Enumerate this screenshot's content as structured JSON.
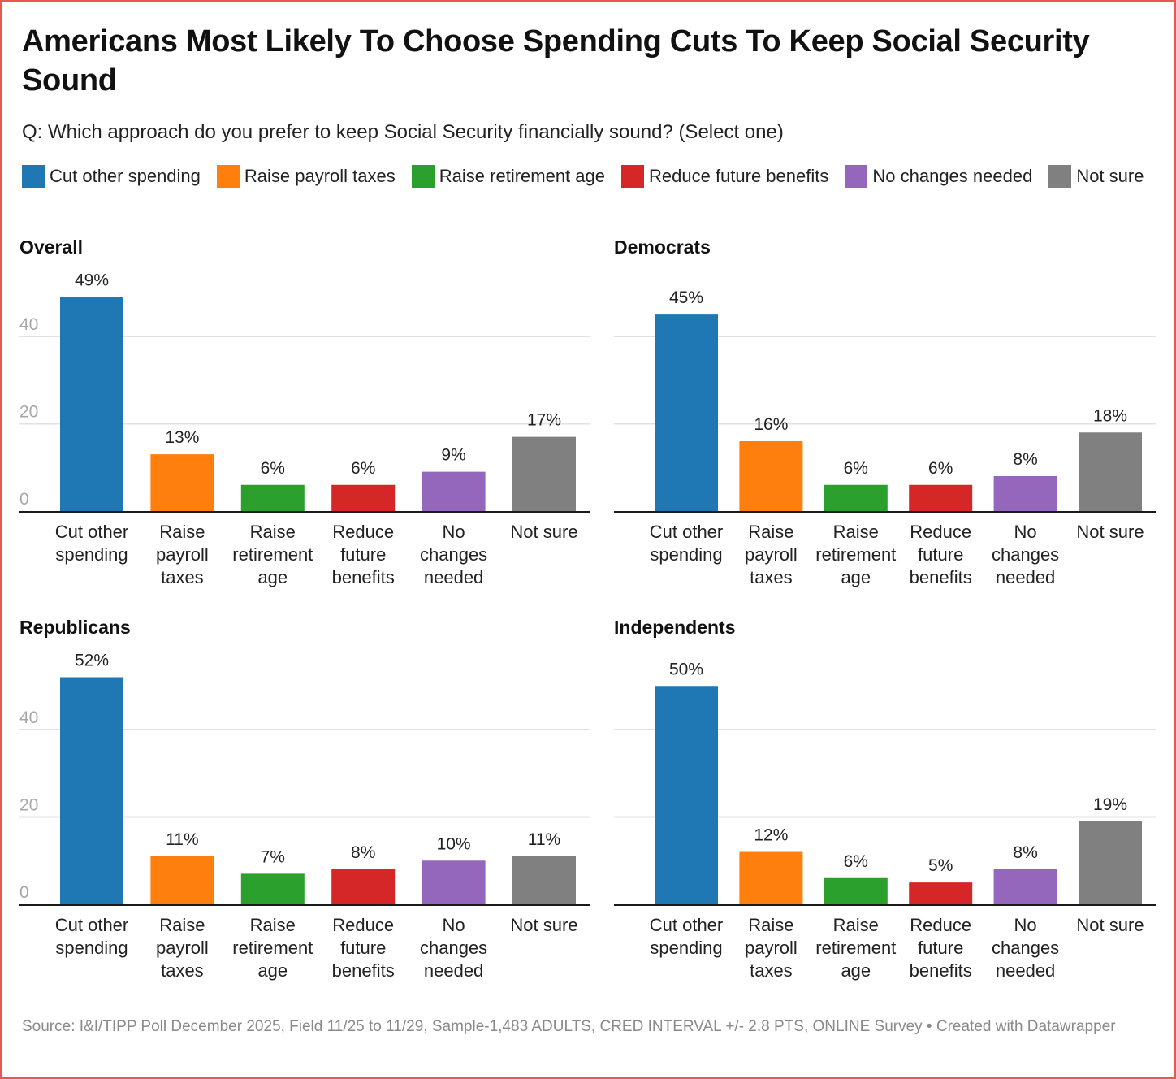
{
  "header": {
    "title": "Americans Most Likely To Choose Spending Cuts To Keep Social Security Sound",
    "subtitle": "Q: Which approach do you prefer to keep Social Security financially sound? (Select one)"
  },
  "legend": [
    {
      "label": "Cut other spending",
      "color": "#1f77b4"
    },
    {
      "label": "Raise payroll taxes",
      "color": "#ff7f0e"
    },
    {
      "label": "Raise retirement age",
      "color": "#2ca02c"
    },
    {
      "label": "Reduce future benefits",
      "color": "#d62728"
    },
    {
      "label": "No changes needed",
      "color": "#9467bd"
    },
    {
      "label": "Not sure",
      "color": "#808080"
    }
  ],
  "footer": {
    "source": "Source: I&I/TIPP Poll December 2025, Field 11/25 to 11/29, Sample-1,483 ADULTS, CRED INTERVAL +/- 2.8 PTS, ONLINE Survey • Created with Datawrapper"
  },
  "chart_data": [
    {
      "type": "bar",
      "title": "Overall",
      "categories": [
        [
          "Cut other",
          "spending"
        ],
        [
          "Raise",
          "payroll",
          "taxes"
        ],
        [
          "Raise",
          "retirement",
          "age"
        ],
        [
          "Reduce",
          "future",
          "benefits"
        ],
        [
          "No",
          "changes",
          "needed"
        ],
        [
          "Not sure"
        ]
      ],
      "values": [
        49,
        13,
        6,
        6,
        9,
        17
      ],
      "labels": [
        "49%",
        "13%",
        "6%",
        "6%",
        "9%",
        "17%"
      ],
      "yticks": [
        "0",
        "20",
        "40"
      ],
      "ytick_values": [
        0,
        20,
        40
      ],
      "show_ytick_labels": true,
      "ylim": [
        0,
        52
      ],
      "grid": true
    },
    {
      "type": "bar",
      "title": "Democrats",
      "categories": [
        [
          "Cut other",
          "spending"
        ],
        [
          "Raise",
          "payroll",
          "taxes"
        ],
        [
          "Raise",
          "retirement",
          "age"
        ],
        [
          "Reduce",
          "future",
          "benefits"
        ],
        [
          "No",
          "changes",
          "needed"
        ],
        [
          "Not sure"
        ]
      ],
      "values": [
        45,
        16,
        6,
        6,
        8,
        18
      ],
      "labels": [
        "45%",
        "16%",
        "6%",
        "6%",
        "8%",
        "18%"
      ],
      "yticks": [
        "0",
        "20",
        "40"
      ],
      "ytick_values": [
        0,
        20,
        40
      ],
      "show_ytick_labels": false,
      "ylim": [
        0,
        52
      ],
      "grid": true
    },
    {
      "type": "bar",
      "title": "Republicans",
      "categories": [
        [
          "Cut other",
          "spending"
        ],
        [
          "Raise",
          "payroll",
          "taxes"
        ],
        [
          "Raise",
          "retirement",
          "age"
        ],
        [
          "Reduce",
          "future",
          "benefits"
        ],
        [
          "No",
          "changes",
          "needed"
        ],
        [
          "Not sure"
        ]
      ],
      "values": [
        52,
        11,
        7,
        8,
        10,
        11
      ],
      "labels": [
        "52%",
        "11%",
        "7%",
        "8%",
        "10%",
        "11%"
      ],
      "yticks": [
        "0",
        "20",
        "40"
      ],
      "ytick_values": [
        0,
        20,
        40
      ],
      "show_ytick_labels": true,
      "ylim": [
        0,
        52
      ],
      "grid": true
    },
    {
      "type": "bar",
      "title": "Independents",
      "categories": [
        [
          "Cut other",
          "spending"
        ],
        [
          "Raise",
          "payroll",
          "taxes"
        ],
        [
          "Raise",
          "retirement",
          "age"
        ],
        [
          "Reduce",
          "future",
          "benefits"
        ],
        [
          "No",
          "changes",
          "needed"
        ],
        [
          "Not sure"
        ]
      ],
      "values": [
        50,
        12,
        6,
        5,
        8,
        19
      ],
      "labels": [
        "50%",
        "12%",
        "6%",
        "5%",
        "8%",
        "19%"
      ],
      "yticks": [
        "0",
        "20",
        "40"
      ],
      "ytick_values": [
        0,
        20,
        40
      ],
      "show_ytick_labels": false,
      "ylim": [
        0,
        52
      ],
      "grid": true
    }
  ]
}
